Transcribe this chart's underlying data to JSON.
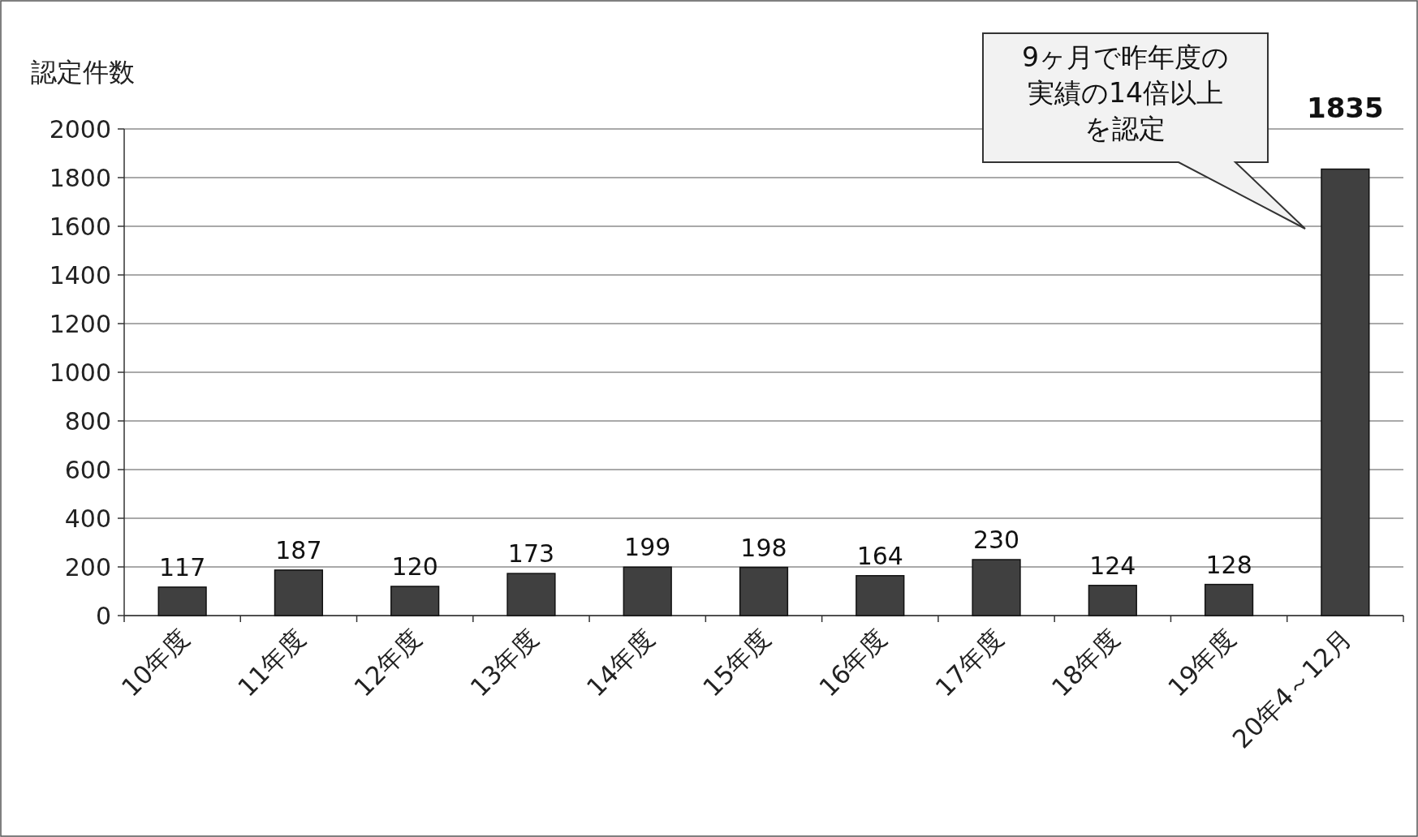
{
  "chart_data": {
    "type": "bar",
    "ylabel": "認定件数",
    "categories": [
      "10年度",
      "11年度",
      "12年度",
      "13年度",
      "14年度",
      "15年度",
      "16年度",
      "17年度",
      "18年度",
      "19年度",
      "20年4～12月"
    ],
    "values": [
      117,
      187,
      120,
      173,
      199,
      198,
      164,
      230,
      124,
      128,
      1835
    ],
    "color": "#404040",
    "ylim": [
      0,
      2000
    ],
    "yticks": [
      0,
      200,
      400,
      600,
      800,
      1000,
      1200,
      1400,
      1600,
      1800,
      2000
    ],
    "grid": "y",
    "data_labels": true,
    "annotations": [
      "9ヶ月で昨年度の実績の14倍以上を認定"
    ]
  }
}
